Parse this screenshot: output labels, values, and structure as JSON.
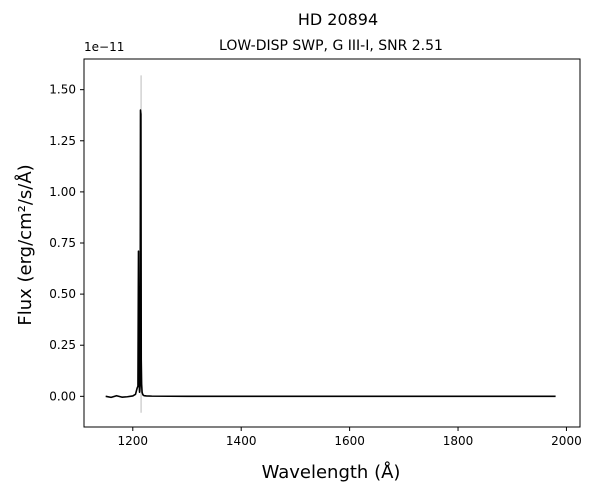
{
  "chart_data": {
    "type": "line",
    "title": "HD  20894",
    "subtitle": "LOW-DISP SWP, G III-I, SNR 2.51",
    "xlabel": "Wavelength (Å)",
    "ylabel": "Flux (erg/cm²/s/Å)",
    "y_offset_label": "1e−11",
    "xlim": [
      1110,
      2025
    ],
    "ylim": [
      -0.15,
      1.65
    ],
    "x_ticks": [
      1200,
      1400,
      1600,
      1800,
      2000
    ],
    "x_tick_labels": [
      "1200",
      "1400",
      "1600",
      "1800",
      "2000"
    ],
    "y_ticks": [
      0.0,
      0.25,
      0.5,
      0.75,
      1.0,
      1.25,
      1.5
    ],
    "y_tick_labels": [
      "0.00",
      "0.25",
      "0.50",
      "0.75",
      "1.00",
      "1.25",
      "1.50"
    ],
    "grid": false,
    "series": [
      {
        "color": "#000000",
        "x": [
          1150,
          1160,
          1170,
          1180,
          1190,
          1200,
          1205,
          1208,
          1209.5,
          1210.5,
          1211.5,
          1212.5,
          1213.5,
          1214.2,
          1215.0,
          1215.6,
          1216.3,
          1217.2,
          1218.5,
          1221,
          1225,
          1235,
          1300,
          1400,
          1500,
          1600,
          1700,
          1800,
          1900,
          1980
        ],
        "y": [
          0.0,
          -0.005,
          0.003,
          -0.004,
          -0.002,
          0.002,
          0.01,
          0.04,
          0.05,
          0.71,
          0.08,
          0.02,
          0.05,
          1.4,
          1.38,
          0.18,
          0.06,
          0.02,
          0.008,
          0.003,
          0.002,
          0.001,
          0.0,
          0.0,
          0.0,
          0.0,
          0.0,
          0.0,
          0.0,
          0.0
        ]
      },
      {
        "color": "#bbbbbb",
        "x": [
          1215.3,
          1215.3
        ],
        "y": [
          -0.08,
          1.57
        ]
      }
    ]
  }
}
